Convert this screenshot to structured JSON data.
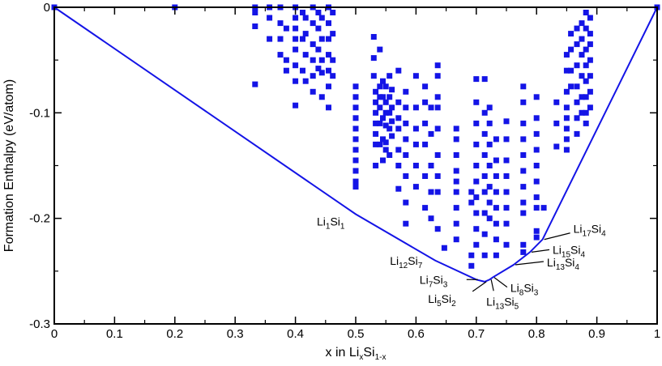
{
  "chart_data": {
    "type": "scatter",
    "title": "",
    "xlabel": {
      "base": "x in Li",
      "sub1": "x",
      "mid": "Si",
      "sub2": "1-x"
    },
    "ylabel": "Formation Enthalpy (eV/atom)",
    "xlim": [
      0,
      1
    ],
    "ylim": [
      -0.3,
      0
    ],
    "x_ticks": [
      "0",
      "0.1",
      "0.2",
      "0.3",
      "0.4",
      "0.5",
      "0.6",
      "0.7",
      "0.8",
      "0.9",
      "1"
    ],
    "y_ticks": [
      "0",
      "-0.1",
      "-0.2",
      "-0.3"
    ],
    "grid": false,
    "legend": "none",
    "colors": {
      "series": "#1414e6",
      "hull": "#1414e6",
      "axis": "#000000"
    },
    "hull": [
      [
        0.0,
        0.0
      ],
      [
        0.5,
        -0.196
      ],
      [
        0.632,
        -0.24
      ],
      [
        0.7,
        -0.258
      ],
      [
        0.714,
        -0.26
      ],
      [
        0.722,
        -0.258
      ],
      [
        0.727,
        -0.256
      ],
      [
        0.762,
        -0.244
      ],
      [
        0.789,
        -0.232
      ],
      [
        0.81,
        -0.22
      ],
      [
        1.0,
        0.0
      ]
    ],
    "stable_labels": [
      {
        "base": "Li",
        "s1": "1",
        "mid": "Si",
        "s2": "1",
        "x": 0.5,
        "y": -0.196,
        "anchor": "left-below"
      },
      {
        "base": "Li",
        "s1": "12",
        "mid": "Si",
        "s2": "7",
        "x": 0.632,
        "y": -0.24,
        "anchor": "left"
      },
      {
        "base": "Li",
        "s1": "7",
        "mid": "Si",
        "s2": "3",
        "x": 0.7,
        "y": -0.258,
        "anchor": "left"
      },
      {
        "base": "Li",
        "s1": "5",
        "mid": "Si",
        "s2": "2",
        "x": 0.714,
        "y": -0.26,
        "anchor": "below-left"
      },
      {
        "base": "Li",
        "s1": "13",
        "mid": "Si",
        "s2": "5",
        "x": 0.722,
        "y": -0.258,
        "anchor": "below"
      },
      {
        "base": "Li",
        "s1": "8",
        "mid": "Si",
        "s2": "3",
        "x": 0.727,
        "y": -0.256,
        "anchor": "right-below"
      },
      {
        "base": "Li",
        "s1": "13",
        "mid": "Si",
        "s2": "4",
        "x": 0.762,
        "y": -0.244,
        "anchor": "right"
      },
      {
        "base": "Li",
        "s1": "15",
        "mid": "Si",
        "s2": "4",
        "x": 0.789,
        "y": -0.232,
        "anchor": "right"
      },
      {
        "base": "Li",
        "s1": "17",
        "mid": "Si",
        "s2": "4",
        "x": 0.81,
        "y": -0.22,
        "anchor": "right-up"
      }
    ],
    "series": [
      {
        "points": [
          [
            0.0,
            0.0
          ],
          [
            0.2,
            0.0
          ],
          [
            1.0,
            0.0
          ],
          [
            0.333,
            0.0
          ],
          [
            0.333,
            -0.005
          ],
          [
            0.333,
            -0.018
          ],
          [
            0.333,
            -0.073
          ],
          [
            0.357,
            0.0
          ],
          [
            0.357,
            -0.01
          ],
          [
            0.357,
            -0.03
          ],
          [
            0.375,
            0.0
          ],
          [
            0.375,
            -0.015
          ],
          [
            0.375,
            -0.03
          ],
          [
            0.375,
            -0.045
          ],
          [
            0.385,
            -0.02
          ],
          [
            0.385,
            -0.05
          ],
          [
            0.385,
            -0.06
          ],
          [
            0.4,
            0.0
          ],
          [
            0.4,
            -0.01
          ],
          [
            0.4,
            -0.02
          ],
          [
            0.4,
            -0.03
          ],
          [
            0.4,
            -0.04
          ],
          [
            0.4,
            -0.055
          ],
          [
            0.4,
            -0.07
          ],
          [
            0.4,
            -0.093
          ],
          [
            0.412,
            -0.005
          ],
          [
            0.412,
            -0.03
          ],
          [
            0.412,
            -0.06
          ],
          [
            0.417,
            -0.01
          ],
          [
            0.417,
            -0.025
          ],
          [
            0.417,
            -0.045
          ],
          [
            0.417,
            -0.07
          ],
          [
            0.429,
            0.0
          ],
          [
            0.429,
            -0.015
          ],
          [
            0.429,
            -0.035
          ],
          [
            0.429,
            -0.05
          ],
          [
            0.429,
            -0.065
          ],
          [
            0.429,
            -0.08
          ],
          [
            0.438,
            -0.005
          ],
          [
            0.438,
            -0.02
          ],
          [
            0.438,
            -0.04
          ],
          [
            0.438,
            -0.058
          ],
          [
            0.444,
            -0.01
          ],
          [
            0.444,
            -0.03
          ],
          [
            0.444,
            -0.05
          ],
          [
            0.444,
            -0.062
          ],
          [
            0.444,
            -0.085
          ],
          [
            0.455,
            0.0
          ],
          [
            0.455,
            -0.015
          ],
          [
            0.455,
            -0.03
          ],
          [
            0.455,
            -0.045
          ],
          [
            0.455,
            -0.06
          ],
          [
            0.455,
            -0.075
          ],
          [
            0.455,
            -0.095
          ],
          [
            0.462,
            -0.005
          ],
          [
            0.462,
            -0.025
          ],
          [
            0.462,
            -0.05
          ],
          [
            0.462,
            -0.065
          ],
          [
            0.5,
            -0.075
          ],
          [
            0.5,
            -0.085
          ],
          [
            0.5,
            -0.095
          ],
          [
            0.5,
            -0.105
          ],
          [
            0.5,
            -0.115
          ],
          [
            0.5,
            -0.125
          ],
          [
            0.5,
            -0.135
          ],
          [
            0.5,
            -0.145
          ],
          [
            0.5,
            -0.155
          ],
          [
            0.5,
            -0.165
          ],
          [
            0.5,
            -0.17
          ],
          [
            0.53,
            -0.028
          ],
          [
            0.53,
            -0.048
          ],
          [
            0.53,
            -0.065
          ],
          [
            0.533,
            -0.08
          ],
          [
            0.533,
            -0.09
          ],
          [
            0.533,
            -0.1
          ],
          [
            0.533,
            -0.11
          ],
          [
            0.533,
            -0.12
          ],
          [
            0.533,
            -0.13
          ],
          [
            0.533,
            -0.15
          ],
          [
            0.54,
            -0.04
          ],
          [
            0.54,
            -0.075
          ],
          [
            0.54,
            -0.085
          ],
          [
            0.54,
            -0.095
          ],
          [
            0.54,
            -0.11
          ],
          [
            0.54,
            -0.13
          ],
          [
            0.545,
            -0.07
          ],
          [
            0.545,
            -0.085
          ],
          [
            0.545,
            -0.105
          ],
          [
            0.545,
            -0.125
          ],
          [
            0.545,
            -0.145
          ],
          [
            0.55,
            -0.075
          ],
          [
            0.55,
            -0.09
          ],
          [
            0.55,
            -0.1
          ],
          [
            0.55,
            -0.112
          ],
          [
            0.55,
            -0.128
          ],
          [
            0.55,
            -0.135
          ],
          [
            0.556,
            -0.065
          ],
          [
            0.556,
            -0.085
          ],
          [
            0.556,
            -0.1
          ],
          [
            0.556,
            -0.115
          ],
          [
            0.556,
            -0.14
          ],
          [
            0.56,
            -0.078
          ],
          [
            0.56,
            -0.095
          ],
          [
            0.56,
            -0.108
          ],
          [
            0.56,
            -0.122
          ],
          [
            0.571,
            -0.06
          ],
          [
            0.571,
            -0.09
          ],
          [
            0.571,
            -0.105
          ],
          [
            0.571,
            -0.115
          ],
          [
            0.571,
            -0.135
          ],
          [
            0.571,
            -0.15
          ],
          [
            0.571,
            -0.172
          ],
          [
            0.583,
            -0.08
          ],
          [
            0.583,
            -0.095
          ],
          [
            0.583,
            -0.11
          ],
          [
            0.583,
            -0.125
          ],
          [
            0.583,
            -0.14
          ],
          [
            0.583,
            -0.16
          ],
          [
            0.583,
            -0.185
          ],
          [
            0.583,
            -0.205
          ],
          [
            0.6,
            -0.065
          ],
          [
            0.6,
            -0.095
          ],
          [
            0.6,
            -0.115
          ],
          [
            0.6,
            -0.13
          ],
          [
            0.6,
            -0.15
          ],
          [
            0.6,
            -0.17
          ],
          [
            0.615,
            -0.075
          ],
          [
            0.615,
            -0.09
          ],
          [
            0.615,
            -0.11
          ],
          [
            0.615,
            -0.13
          ],
          [
            0.615,
            -0.16
          ],
          [
            0.615,
            -0.19
          ],
          [
            0.625,
            -0.095
          ],
          [
            0.625,
            -0.12
          ],
          [
            0.625,
            -0.15
          ],
          [
            0.625,
            -0.175
          ],
          [
            0.625,
            -0.2
          ],
          [
            0.636,
            -0.055
          ],
          [
            0.636,
            -0.065
          ],
          [
            0.636,
            -0.085
          ],
          [
            0.636,
            -0.095
          ],
          [
            0.636,
            -0.115
          ],
          [
            0.636,
            -0.14
          ],
          [
            0.636,
            -0.16
          ],
          [
            0.636,
            -0.175
          ],
          [
            0.636,
            -0.21
          ],
          [
            0.647,
            -0.228
          ],
          [
            0.667,
            -0.115
          ],
          [
            0.667,
            -0.125
          ],
          [
            0.667,
            -0.14
          ],
          [
            0.667,
            -0.155
          ],
          [
            0.667,
            -0.165
          ],
          [
            0.667,
            -0.175
          ],
          [
            0.667,
            -0.19
          ],
          [
            0.667,
            -0.205
          ],
          [
            0.667,
            -0.22
          ],
          [
            0.692,
            -0.175
          ],
          [
            0.692,
            -0.185
          ],
          [
            0.692,
            -0.235
          ],
          [
            0.692,
            -0.245
          ],
          [
            0.7,
            -0.068
          ],
          [
            0.7,
            -0.09
          ],
          [
            0.7,
            -0.11
          ],
          [
            0.7,
            -0.13
          ],
          [
            0.7,
            -0.15
          ],
          [
            0.7,
            -0.165
          ],
          [
            0.7,
            -0.18
          ],
          [
            0.7,
            -0.195
          ],
          [
            0.7,
            -0.21
          ],
          [
            0.7,
            -0.225
          ],
          [
            0.714,
            -0.068
          ],
          [
            0.714,
            -0.1
          ],
          [
            0.714,
            -0.12
          ],
          [
            0.714,
            -0.14
          ],
          [
            0.714,
            -0.16
          ],
          [
            0.714,
            -0.175
          ],
          [
            0.714,
            -0.195
          ],
          [
            0.714,
            -0.215
          ],
          [
            0.714,
            -0.235
          ],
          [
            0.722,
            -0.095
          ],
          [
            0.722,
            -0.11
          ],
          [
            0.722,
            -0.13
          ],
          [
            0.722,
            -0.15
          ],
          [
            0.722,
            -0.17
          ],
          [
            0.722,
            -0.185
          ],
          [
            0.722,
            -0.2
          ],
          [
            0.733,
            -0.125
          ],
          [
            0.733,
            -0.145
          ],
          [
            0.733,
            -0.16
          ],
          [
            0.733,
            -0.175
          ],
          [
            0.733,
            -0.19
          ],
          [
            0.733,
            -0.205
          ],
          [
            0.733,
            -0.22
          ],
          [
            0.733,
            -0.235
          ],
          [
            0.75,
            -0.108
          ],
          [
            0.75,
            -0.125
          ],
          [
            0.75,
            -0.145
          ],
          [
            0.75,
            -0.16
          ],
          [
            0.75,
            -0.175
          ],
          [
            0.75,
            -0.19
          ],
          [
            0.75,
            -0.205
          ],
          [
            0.75,
            -0.225
          ],
          [
            0.778,
            -0.075
          ],
          [
            0.778,
            -0.09
          ],
          [
            0.778,
            -0.11
          ],
          [
            0.778,
            -0.125
          ],
          [
            0.778,
            -0.14
          ],
          [
            0.778,
            -0.155
          ],
          [
            0.778,
            -0.17
          ],
          [
            0.778,
            -0.185
          ],
          [
            0.778,
            -0.195
          ],
          [
            0.778,
            -0.225
          ],
          [
            0.778,
            -0.232
          ],
          [
            0.8,
            -0.085
          ],
          [
            0.8,
            -0.105
          ],
          [
            0.8,
            -0.12
          ],
          [
            0.8,
            -0.135
          ],
          [
            0.8,
            -0.15
          ],
          [
            0.8,
            -0.165
          ],
          [
            0.8,
            -0.18
          ],
          [
            0.8,
            -0.19
          ],
          [
            0.8,
            -0.212
          ],
          [
            0.8,
            -0.218
          ],
          [
            0.812,
            -0.19
          ],
          [
            0.833,
            -0.09
          ],
          [
            0.833,
            -0.11
          ],
          [
            0.833,
            -0.132
          ],
          [
            0.85,
            -0.045
          ],
          [
            0.85,
            -0.06
          ],
          [
            0.85,
            -0.08
          ],
          [
            0.85,
            -0.095
          ],
          [
            0.85,
            -0.105
          ],
          [
            0.85,
            -0.115
          ],
          [
            0.85,
            -0.125
          ],
          [
            0.85,
            -0.135
          ],
          [
            0.857,
            -0.025
          ],
          [
            0.857,
            -0.04
          ],
          [
            0.857,
            -0.06
          ],
          [
            0.857,
            -0.075
          ],
          [
            0.867,
            -0.02
          ],
          [
            0.867,
            -0.035
          ],
          [
            0.867,
            -0.055
          ],
          [
            0.867,
            -0.075
          ],
          [
            0.867,
            -0.09
          ],
          [
            0.867,
            -0.105
          ],
          [
            0.867,
            -0.12
          ],
          [
            0.875,
            -0.015
          ],
          [
            0.875,
            -0.03
          ],
          [
            0.875,
            -0.045
          ],
          [
            0.875,
            -0.065
          ],
          [
            0.875,
            -0.085
          ],
          [
            0.875,
            -0.1
          ],
          [
            0.882,
            -0.005
          ],
          [
            0.882,
            -0.02
          ],
          [
            0.882,
            -0.04
          ],
          [
            0.882,
            -0.055
          ],
          [
            0.882,
            -0.07
          ],
          [
            0.882,
            -0.085
          ],
          [
            0.882,
            -0.1
          ],
          [
            0.882,
            -0.11
          ],
          [
            0.889,
            -0.01
          ],
          [
            0.889,
            -0.025
          ],
          [
            0.889,
            -0.035
          ],
          [
            0.889,
            -0.05
          ],
          [
            0.889,
            -0.065
          ],
          [
            0.889,
            -0.08
          ],
          [
            0.889,
            -0.095
          ]
        ]
      }
    ]
  }
}
